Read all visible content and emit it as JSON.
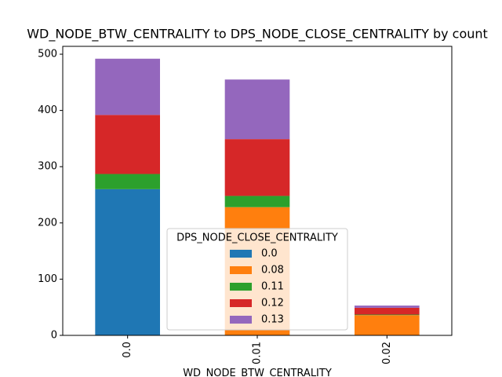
{
  "chart_data": {
    "type": "stacked_bar",
    "title": "WD_NODE_BTW_CENTRALITY to DPS_NODE_CLOSE_CENTRALITY by count",
    "x_label": "WD_NODE_BTW_CENTRALITY",
    "categories": [
      "0.0",
      "0.01",
      "0.02"
    ],
    "series": [
      {
        "name": "0.0",
        "color": "#1f77b4",
        "values": [
          260,
          0,
          0
        ]
      },
      {
        "name": "0.08",
        "color": "#ff7f0e",
        "values": [
          0,
          228,
          36
        ]
      },
      {
        "name": "0.11",
        "color": "#2ca02c",
        "values": [
          27,
          20,
          1
        ]
      },
      {
        "name": "0.12",
        "color": "#d62728",
        "values": [
          105,
          101,
          12
        ]
      },
      {
        "name": "0.13",
        "color": "#9467bd",
        "values": [
          100,
          106,
          4
        ]
      }
    ],
    "legend_title": "DPS_NODE_CLOSE_CENTRALITY",
    "legend_position": "lower center",
    "ylim": [
      0,
      514
    ],
    "yticks": [
      0,
      100,
      200,
      300,
      400,
      500
    ]
  }
}
